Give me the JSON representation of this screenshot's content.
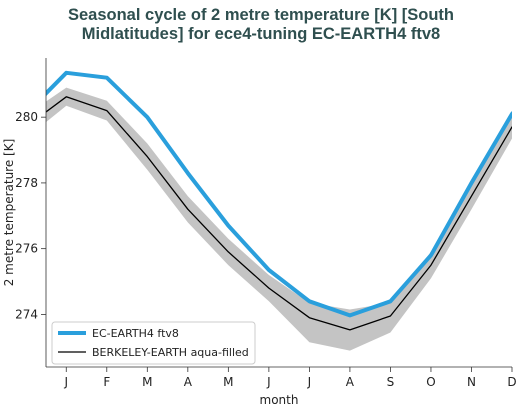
{
  "chart_data": {
    "type": "line",
    "title_line1": "Seasonal cycle of 2 metre temperature [K] [South",
    "title_line2": "Midlatitudes] for ece4-tuning EC-EARTH4 ftv8",
    "xlabel": "month",
    "ylabel": "2 metre temperature [K]",
    "categories": [
      "J",
      "F",
      "M",
      "A",
      "M",
      "J",
      "J",
      "A",
      "S",
      "O",
      "N",
      "D"
    ],
    "ylim": [
      272.4,
      281.8
    ],
    "yticks": [
      274,
      276,
      278,
      280
    ],
    "grid": false,
    "legend_position": "lower-left",
    "series": [
      {
        "name": "EC-EARTH4 ftv8",
        "color": "#2a9fdc",
        "values": [
          281.35,
          281.2,
          280.0,
          278.3,
          276.7,
          275.35,
          274.4,
          273.97,
          274.4,
          275.8,
          278.0,
          280.1
        ]
      },
      {
        "name": "BERKELEY-EARTH aqua-filled",
        "color": "#000000",
        "values": [
          280.62,
          280.2,
          278.8,
          277.2,
          275.9,
          274.8,
          273.9,
          273.53,
          273.95,
          275.5,
          277.6,
          279.7
        ],
        "band_upper": [
          280.9,
          280.5,
          279.2,
          277.6,
          276.3,
          275.2,
          274.35,
          274.15,
          274.35,
          275.9,
          278.0,
          280.05
        ],
        "band_lower": [
          280.35,
          279.9,
          278.4,
          276.8,
          275.5,
          274.4,
          273.15,
          272.9,
          273.45,
          275.1,
          277.2,
          279.35
        ],
        "band_color": "#c4c4c4"
      }
    ]
  }
}
